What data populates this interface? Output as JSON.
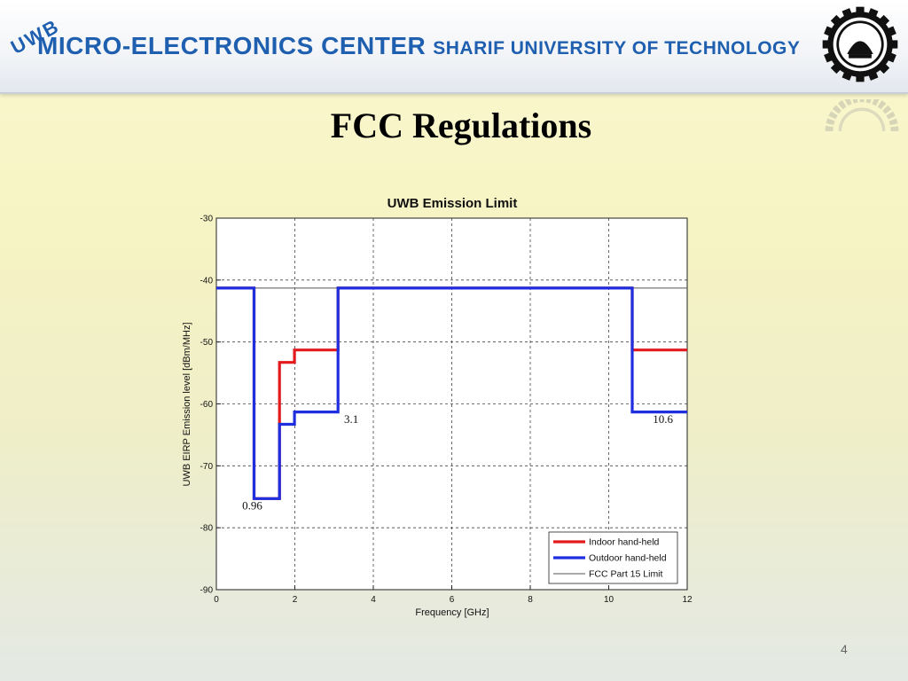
{
  "header": {
    "badge": "UWB",
    "center_name": "MICRO-ELECTRONICS CENTER",
    "university": "SHARIF UNIVERSITY OF TECHNOLOGY"
  },
  "slide": {
    "title": "FCC Regulations",
    "page_number": "4"
  },
  "colors": {
    "indoor": "#e31a1c",
    "outdoor": "#1f2fe0",
    "limit": "#555555",
    "header_text": "#1f5fb0"
  },
  "chart_data": {
    "type": "line",
    "title": "UWB Emission Limit",
    "xlabel": "Frequency [GHz]",
    "ylabel": "UWB EIRP Emission level [dBm/MHz]",
    "xlim": [
      0,
      12
    ],
    "ylim": [
      -90,
      -30
    ],
    "xticks": [
      0,
      2,
      4,
      6,
      8,
      10,
      12
    ],
    "yticks": [
      -30,
      -40,
      -50,
      -60,
      -70,
      -80,
      -90
    ],
    "grid": true,
    "legend_position": "bottom-right",
    "series": [
      {
        "name": "Indoor hand-held",
        "color": "#e31a1c",
        "x": [
          0,
          0.96,
          0.96,
          1.61,
          1.61,
          1.99,
          1.99,
          3.1,
          3.1,
          10.6,
          10.6,
          12
        ],
        "y": [
          -41.3,
          -41.3,
          -75.3,
          -75.3,
          -53.3,
          -53.3,
          -51.3,
          -51.3,
          -41.3,
          -41.3,
          -51.3,
          -51.3
        ]
      },
      {
        "name": "Outdoor hand-held",
        "color": "#1f2fe0",
        "x": [
          0,
          0.96,
          0.96,
          1.61,
          1.61,
          1.99,
          1.99,
          3.1,
          3.1,
          10.6,
          10.6,
          12
        ],
        "y": [
          -41.3,
          -41.3,
          -75.3,
          -75.3,
          -63.3,
          -63.3,
          -61.3,
          -61.3,
          -41.3,
          -41.3,
          -61.3,
          -61.3
        ]
      },
      {
        "name": "FCC Part 15 Limit",
        "color": "#555555",
        "x": [
          0,
          12
        ],
        "y": [
          -41.3,
          -41.3
        ]
      }
    ],
    "annotations": [
      {
        "text": "0.96",
        "x": 0.96,
        "y": -76.5
      },
      {
        "text": "3.1",
        "x": 3.1,
        "y": -62.5
      },
      {
        "text": "10.6",
        "x": 10.6,
        "y": -62.5
      }
    ]
  }
}
